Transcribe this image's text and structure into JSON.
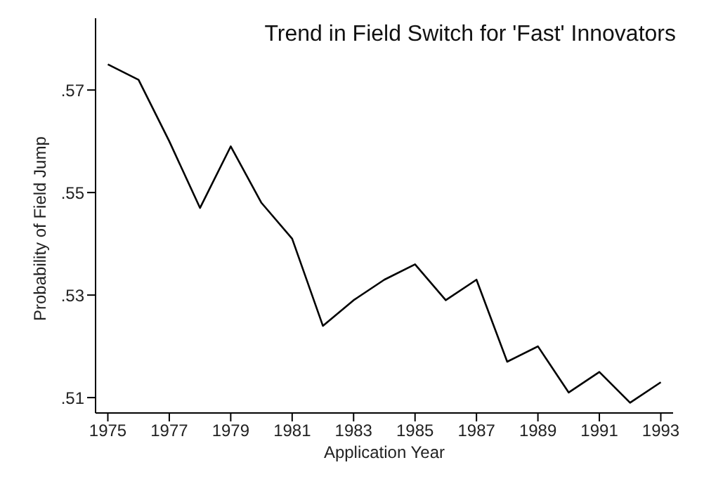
{
  "chart_data": {
    "type": "line",
    "title": "Trend in Field Switch for 'Fast' Innovators",
    "xlabel": "Application Year",
    "ylabel": "Probability of Field Jump",
    "x": [
      1975,
      1976,
      1977,
      1978,
      1979,
      1980,
      1981,
      1982,
      1983,
      1984,
      1985,
      1986,
      1987,
      1988,
      1989,
      1990,
      1991,
      1992,
      1993
    ],
    "series": [
      {
        "color": "#000000",
        "values": [
          0.575,
          0.572,
          0.56,
          0.547,
          0.559,
          0.548,
          0.541,
          0.524,
          0.529,
          0.533,
          0.536,
          0.529,
          0.533,
          0.517,
          0.52,
          0.511,
          0.515,
          0.509,
          0.513
        ]
      }
    ],
    "xlim": [
      1974.6,
      1993.4
    ],
    "xticks": [
      1975,
      1977,
      1979,
      1981,
      1983,
      1985,
      1987,
      1989,
      1991,
      1993
    ],
    "ylim": [
      0.507,
      0.584
    ],
    "yticks": [
      {
        "value": 0.51,
        "label": ".51"
      },
      {
        "value": 0.53,
        "label": ".53"
      },
      {
        "value": 0.55,
        "label": ".55"
      },
      {
        "value": 0.57,
        "label": ".57"
      }
    ],
    "grid": false,
    "legend": false,
    "marker": "none",
    "line_style": "solid"
  }
}
